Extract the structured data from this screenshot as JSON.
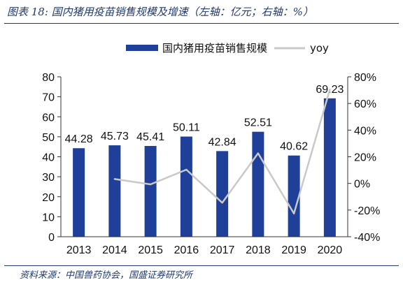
{
  "header": {
    "title": "图表 18:  国内猪用疫苗销售规模及增速（左轴：亿元；右轴：%）"
  },
  "footer": {
    "source": "资料来源：中国兽药协会，国盛证券研究所"
  },
  "colors": {
    "bar": "#1f3f99",
    "line": "#c9c9c9",
    "header_text": "#1f3a6e"
  },
  "chart_data": {
    "type": "bar",
    "categories": [
      "2013",
      "2014",
      "2015",
      "2016",
      "2017",
      "2018",
      "2019",
      "2020"
    ],
    "series": [
      {
        "name": "国内猪用疫苗销售规模",
        "type": "bar",
        "axis": "left",
        "values": [
          44.28,
          45.73,
          45.41,
          50.11,
          42.84,
          52.51,
          40.62,
          69.23
        ],
        "labels": [
          "44.28",
          "45.73",
          "45.41",
          "50.11",
          "42.84",
          "52.51",
          "40.62",
          "69.23"
        ]
      },
      {
        "name": "yoy",
        "type": "line",
        "axis": "right",
        "values": [
          null,
          3.3,
          -0.7,
          10.3,
          -14.5,
          22.6,
          -22.6,
          70.4
        ]
      }
    ],
    "y_left": {
      "min": 0,
      "max": 80,
      "ticks": [
        "0",
        "10",
        "20",
        "30",
        "40",
        "50",
        "60",
        "70",
        "80"
      ]
    },
    "y_right": {
      "min": -40,
      "max": 80,
      "ticks": [
        "-40%",
        "-20%",
        "0%",
        "20%",
        "40%",
        "60%",
        "80%"
      ]
    },
    "legend_position": "top-center",
    "grid": false
  }
}
